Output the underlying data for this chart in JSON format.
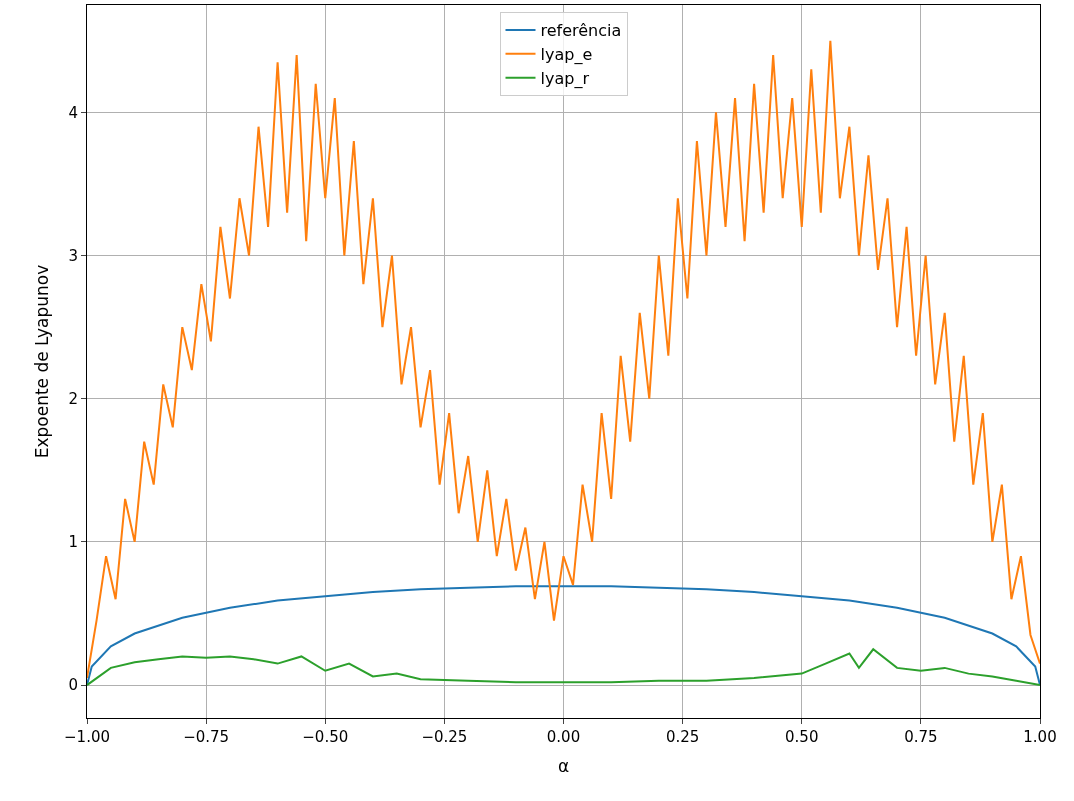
{
  "chart_data": {
    "type": "line",
    "xlabel": "α",
    "ylabel": "Expoente de Lyapunov",
    "xlim": [
      -1.0,
      1.0
    ],
    "xticks": [
      {
        "value": -1,
        "label": "−1.00"
      },
      {
        "value": -0.75,
        "label": "−0.75"
      },
      {
        "value": -0.5,
        "label": "−0.50"
      },
      {
        "value": -0.25,
        "label": "−0.25"
      },
      {
        "value": 0,
        "label": "0.00"
      },
      {
        "value": 0.25,
        "label": "0.25"
      },
      {
        "value": 0.5,
        "label": "0.50"
      },
      {
        "value": 0.75,
        "label": "0.75"
      },
      {
        "value": 1,
        "label": "1.00"
      }
    ],
    "ylim": [
      -0.23,
      4.75
    ],
    "yticks": [
      0,
      1,
      2,
      3,
      4
    ],
    "grid": true,
    "legend": "top",
    "series": [
      {
        "name": "referência",
        "color": "#1f77b4",
        "x": [
          -1.0,
          -0.99,
          -0.95,
          -0.9,
          -0.8,
          -0.7,
          -0.6,
          -0.5,
          -0.4,
          -0.3,
          -0.2,
          -0.1,
          0.0,
          0.1,
          0.2,
          0.3,
          0.4,
          0.5,
          0.6,
          0.7,
          0.8,
          0.9,
          0.95,
          0.99,
          1.0
        ],
        "values": [
          0.0,
          0.13,
          0.27,
          0.36,
          0.47,
          0.54,
          0.59,
          0.62,
          0.65,
          0.67,
          0.68,
          0.69,
          0.69,
          0.69,
          0.68,
          0.67,
          0.65,
          0.62,
          0.59,
          0.54,
          0.47,
          0.36,
          0.27,
          0.13,
          0.0
        ]
      },
      {
        "name": "lyap_e",
        "color": "#ff7f0e",
        "x": [
          -1.0,
          -0.98,
          -0.96,
          -0.94,
          -0.92,
          -0.9,
          -0.88,
          -0.86,
          -0.84,
          -0.82,
          -0.8,
          -0.78,
          -0.76,
          -0.74,
          -0.72,
          -0.7,
          -0.68,
          -0.66,
          -0.64,
          -0.62,
          -0.6,
          -0.58,
          -0.56,
          -0.54,
          -0.52,
          -0.5,
          -0.48,
          -0.46,
          -0.44,
          -0.42,
          -0.4,
          -0.38,
          -0.36,
          -0.34,
          -0.32,
          -0.3,
          -0.28,
          -0.26,
          -0.24,
          -0.22,
          -0.2,
          -0.18,
          -0.16,
          -0.14,
          -0.12,
          -0.1,
          -0.08,
          -0.06,
          -0.04,
          -0.02,
          0.0,
          0.02,
          0.04,
          0.06,
          0.08,
          0.1,
          0.12,
          0.14,
          0.16,
          0.18,
          0.2,
          0.22,
          0.24,
          0.26,
          0.28,
          0.3,
          0.32,
          0.34,
          0.36,
          0.38,
          0.4,
          0.42,
          0.44,
          0.46,
          0.48,
          0.5,
          0.52,
          0.54,
          0.56,
          0.58,
          0.6,
          0.62,
          0.64,
          0.66,
          0.68,
          0.7,
          0.72,
          0.74,
          0.76,
          0.78,
          0.8,
          0.82,
          0.84,
          0.86,
          0.88,
          0.9,
          0.92,
          0.94,
          0.96,
          0.98,
          1.0
        ],
        "values": [
          0.05,
          0.45,
          0.9,
          0.6,
          1.3,
          1.0,
          1.7,
          1.4,
          2.1,
          1.8,
          2.5,
          2.2,
          2.8,
          2.4,
          3.2,
          2.7,
          3.4,
          3.0,
          3.9,
          3.2,
          4.35,
          3.3,
          4.4,
          3.1,
          4.2,
          3.4,
          4.1,
          3.0,
          3.8,
          2.8,
          3.4,
          2.5,
          3.0,
          2.1,
          2.5,
          1.8,
          2.2,
          1.4,
          1.9,
          1.2,
          1.6,
          1.0,
          1.5,
          0.9,
          1.3,
          0.8,
          1.1,
          0.6,
          1.0,
          0.45,
          0.9,
          0.7,
          1.4,
          1.0,
          1.9,
          1.3,
          2.3,
          1.7,
          2.6,
          2.0,
          3.0,
          2.3,
          3.4,
          2.7,
          3.8,
          3.0,
          4.0,
          3.2,
          4.1,
          3.1,
          4.2,
          3.3,
          4.4,
          3.4,
          4.1,
          3.2,
          4.3,
          3.3,
          4.5,
          3.4,
          3.9,
          3.0,
          3.7,
          2.9,
          3.4,
          2.5,
          3.2,
          2.3,
          3.0,
          2.1,
          2.6,
          1.7,
          2.3,
          1.4,
          1.9,
          1.0,
          1.4,
          0.6,
          0.9,
          0.35,
          0.15
        ]
      },
      {
        "name": "lyap_r",
        "color": "#2ca02c",
        "x": [
          -1.0,
          -0.95,
          -0.9,
          -0.85,
          -0.8,
          -0.75,
          -0.7,
          -0.65,
          -0.6,
          -0.55,
          -0.5,
          -0.45,
          -0.4,
          -0.35,
          -0.3,
          -0.2,
          -0.1,
          0.0,
          0.1,
          0.2,
          0.3,
          0.4,
          0.5,
          0.55,
          0.6,
          0.62,
          0.65,
          0.7,
          0.75,
          0.8,
          0.85,
          0.9,
          0.95,
          1.0
        ],
        "values": [
          0.0,
          0.12,
          0.16,
          0.18,
          0.2,
          0.19,
          0.2,
          0.18,
          0.15,
          0.2,
          0.1,
          0.15,
          0.06,
          0.08,
          0.04,
          0.03,
          0.02,
          0.02,
          0.02,
          0.03,
          0.03,
          0.05,
          0.08,
          0.15,
          0.22,
          0.12,
          0.25,
          0.12,
          0.1,
          0.12,
          0.08,
          0.06,
          0.03,
          0.0
        ]
      }
    ]
  }
}
